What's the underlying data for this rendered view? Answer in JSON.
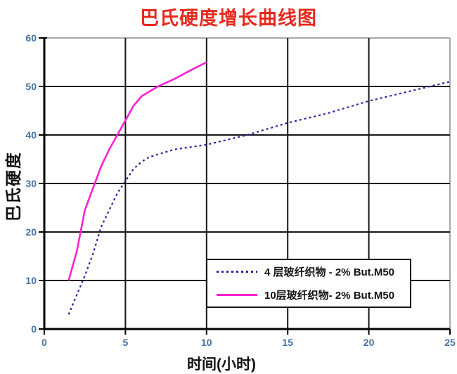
{
  "chart_data": {
    "type": "line",
    "title": "巴氏硬度增长曲线图",
    "xlabel": "时间(小时)",
    "ylabel": "巴氏硬度",
    "xlim": [
      0,
      25
    ],
    "ylim": [
      0,
      60
    ],
    "x_ticks": [
      0,
      5,
      10,
      15,
      20,
      25
    ],
    "y_ticks": [
      0,
      10,
      20,
      30,
      40,
      50,
      60
    ],
    "grid": true,
    "legend_position": "inside-lower-right",
    "series": [
      {
        "name": "4 层玻纤织物 - 2% But.M50",
        "style": "dotted",
        "color": "#2424a0",
        "x": [
          1.5,
          2,
          2.5,
          3,
          3.5,
          4,
          4.5,
          5,
          5.5,
          6,
          6.5,
          7,
          8,
          9,
          10,
          12.5,
          15,
          17.5,
          20,
          22.5,
          25
        ],
        "y": [
          3,
          7,
          11,
          15.5,
          21,
          24.5,
          28,
          30.5,
          33,
          34.5,
          35.5,
          36,
          37,
          37.5,
          38,
          40,
          42.5,
          44.5,
          47,
          49,
          51
        ]
      },
      {
        "name": "10层玻纤织物- 2% But.M50",
        "style": "solid",
        "color": "#ff20d5",
        "x": [
          1.5,
          2,
          2.5,
          3,
          3.5,
          4,
          4.5,
          5,
          5.5,
          6,
          7,
          8,
          9,
          10
        ],
        "y": [
          10,
          16,
          24.5,
          29,
          33.5,
          37,
          40,
          43,
          46,
          48,
          50,
          51.5,
          53.3,
          55
        ]
      }
    ],
    "colors": {
      "title": "#e62a1e",
      "tick_labels": "#47719e",
      "grid": "#161616",
      "axis": "#000000",
      "plot_border": "#a8a8a8",
      "background": "#ffffff"
    }
  }
}
